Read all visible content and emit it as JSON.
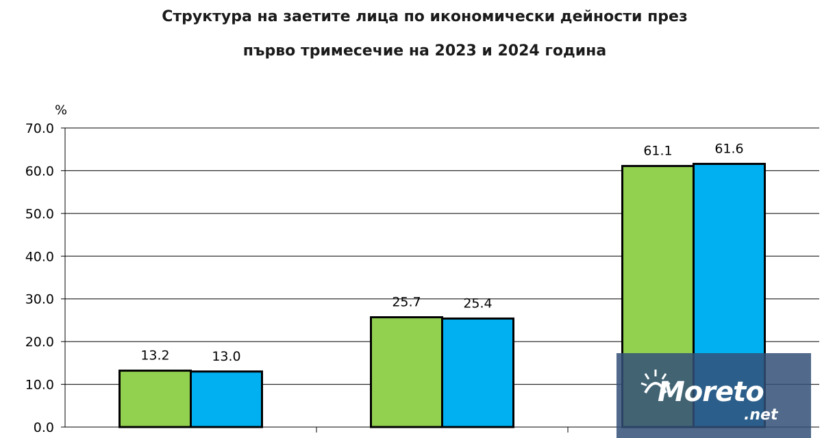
{
  "chart_data": {
    "type": "bar",
    "title": "Структура на заетите лица по икономически дейности през",
    "subtitle": "първо тримесечие на 2023 и 2024 година",
    "ylabel": "%",
    "ylim": [
      0,
      70
    ],
    "yticks": [
      "0.0",
      "10.0",
      "20.0",
      "30.0",
      "40.0",
      "50.0",
      "60.0",
      "70.0"
    ],
    "grid": true,
    "categories": [
      "",
      "",
      ""
    ],
    "series": [
      {
        "values": [
          13.2,
          25.7,
          61.1
        ],
        "labels": [
          "13.2",
          "25.7",
          "61.1"
        ],
        "color": "#92d050"
      },
      {
        "values": [
          13.0,
          25.4,
          61.6
        ],
        "labels": [
          "13.0",
          "25.4",
          "61.6"
        ],
        "color": "#00b0f0"
      }
    ]
  },
  "watermark": {
    "brand": "Moreto",
    "domain": ".net"
  },
  "colors": {
    "grid": "#000000",
    "bar_border": "#000000"
  }
}
